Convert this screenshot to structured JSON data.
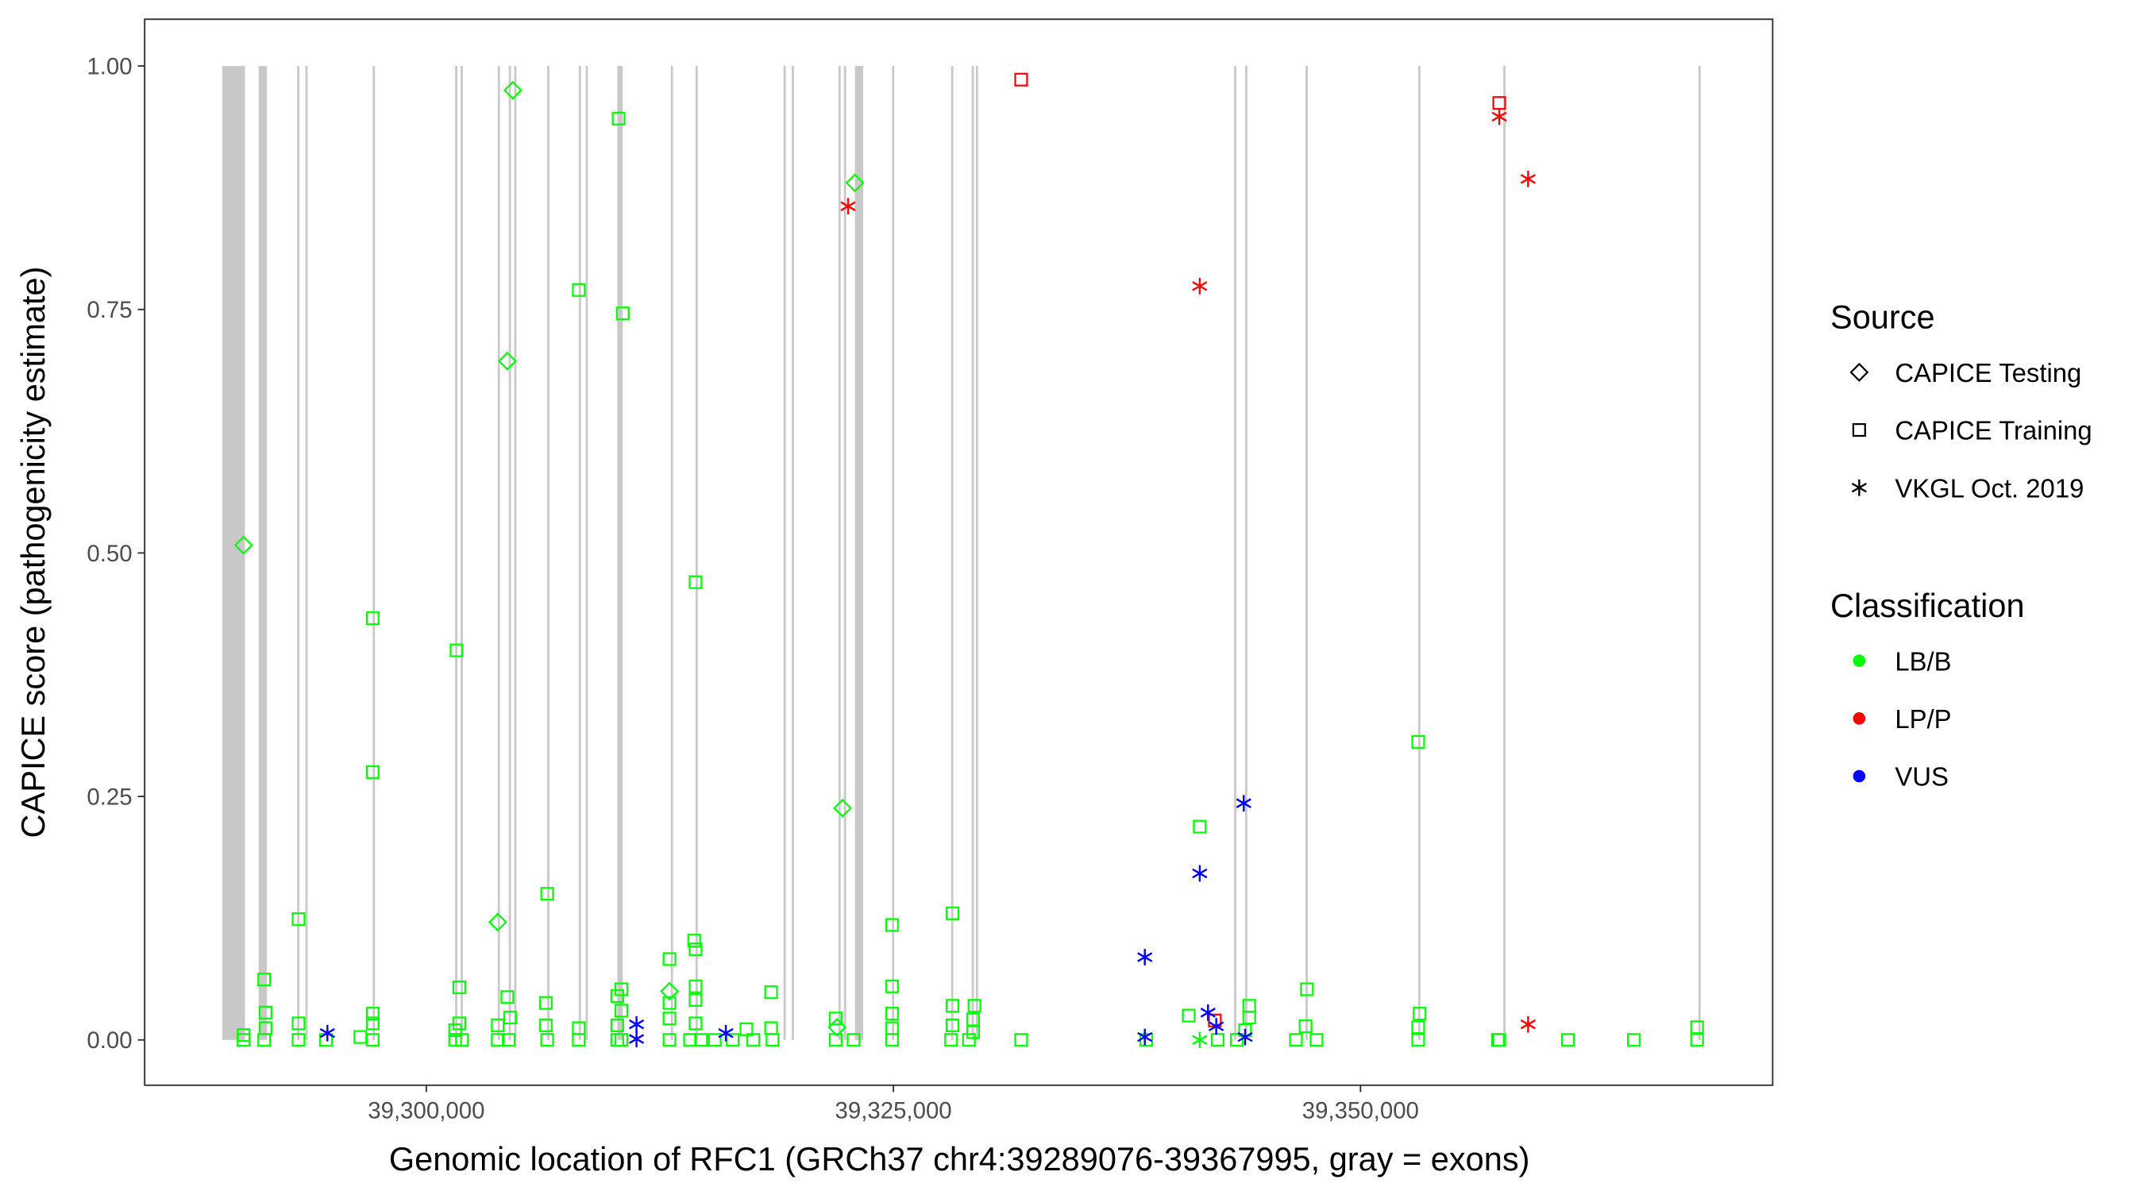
{
  "chart_data": {
    "type": "scatter",
    "title": "",
    "xlabel": "Genomic location of RFC1 (GRCh37 chr4:39289076-39367995, gray = exons)",
    "ylabel": "CAPICE score (pathogenicity estimate)",
    "xlim": [
      39284926,
      39372059
    ],
    "ylim": [
      -0.0465,
      1.048
    ],
    "x_ticks": [
      39300000,
      39325000,
      39350000
    ],
    "x_tick_labels": [
      "39,300,000",
      "39,325,000",
      "39,350,000"
    ],
    "y_ticks": [
      0,
      0.25,
      0.5,
      0.75,
      1.0
    ],
    "y_tick_labels": [
      "0.00",
      "0.25",
      "0.50",
      "0.75",
      "1.00"
    ],
    "grid": false,
    "exon_color": "#c8c8c8",
    "exons": [
      [
        39289076,
        39290294
      ],
      [
        39291029,
        39291470
      ],
      [
        39293088,
        39293200
      ],
      [
        39293529,
        39293640
      ],
      [
        39297132,
        39297240
      ],
      [
        39301544,
        39301650
      ],
      [
        39301838,
        39301950
      ],
      [
        39303824,
        39303930
      ],
      [
        39304412,
        39304520
      ],
      [
        39304706,
        39304810
      ],
      [
        39306471,
        39306580
      ],
      [
        39308162,
        39308270
      ],
      [
        39308529,
        39308640
      ],
      [
        39310221,
        39310515
      ],
      [
        39313088,
        39313200
      ],
      [
        39314412,
        39314520
      ],
      [
        39319118,
        39319230
      ],
      [
        39319559,
        39319670
      ],
      [
        39322059,
        39322170
      ],
      [
        39322353,
        39322460
      ],
      [
        39322941,
        39323382
      ],
      [
        39324927,
        39325040
      ],
      [
        39328088,
        39328200
      ],
      [
        39329191,
        39329300
      ],
      [
        39329412,
        39329520
      ],
      [
        39343235,
        39343340
      ],
      [
        39343824,
        39343930
      ],
      [
        39347059,
        39347170
      ],
      [
        39353088,
        39353200
      ],
      [
        39357647,
        39357750
      ],
      [
        39368088,
        39368190
      ]
    ],
    "legend": {
      "placement": "right",
      "source": {
        "title": "Source",
        "entries": [
          {
            "key": "testing",
            "label": "CAPICE Testing",
            "shape": "diamond"
          },
          {
            "key": "training",
            "label": "CAPICE Training",
            "shape": "square"
          },
          {
            "key": "vkgl",
            "label": "VKGL Oct. 2019",
            "shape": "asterisk"
          }
        ]
      },
      "classification": {
        "title": "Classification",
        "entries": [
          {
            "key": "LB/B",
            "label": "LB/B",
            "color": "#00ff00"
          },
          {
            "key": "LP/P",
            "label": "LP/P",
            "color": "#ff0000"
          },
          {
            "key": "VUS",
            "label": "VUS",
            "color": "#0000ff"
          }
        ]
      }
    },
    "points_columns": [
      "position",
      "score",
      "source",
      "classification"
    ],
    "points": [
      [
        39290220,
        0.508,
        "testing",
        "LB/B"
      ],
      [
        39304632,
        0.975,
        "testing",
        "LB/B"
      ],
      [
        39304338,
        0.697,
        "testing",
        "LB/B"
      ],
      [
        39303824,
        0.121,
        "testing",
        "LB/B"
      ],
      [
        39313015,
        0.05,
        "testing",
        "LB/B"
      ],
      [
        39322941,
        0.88,
        "testing",
        "LB/B"
      ],
      [
        39322279,
        0.238,
        "testing",
        "LB/B"
      ],
      [
        39321985,
        0.013,
        "testing",
        "LB/B"
      ],
      [
        39291323,
        0.062,
        "training",
        "LB/B"
      ],
      [
        39291397,
        0.028,
        "training",
        "LB/B"
      ],
      [
        39291397,
        0.012,
        "training",
        "LB/B"
      ],
      [
        39293162,
        0.124,
        "training",
        "LB/B"
      ],
      [
        39293162,
        0.017,
        "training",
        "LB/B"
      ],
      [
        39297132,
        0.433,
        "training",
        "LB/B"
      ],
      [
        39297132,
        0.275,
        "training",
        "LB/B"
      ],
      [
        39297132,
        0.027,
        "training",
        "LB/B"
      ],
      [
        39297132,
        0.017,
        "training",
        "LB/B"
      ],
      [
        39296471,
        0.003,
        "training",
        "LB/B"
      ],
      [
        39301618,
        0.4,
        "training",
        "LB/B"
      ],
      [
        39301765,
        0.054,
        "training",
        "LB/B"
      ],
      [
        39301765,
        0.017,
        "training",
        "LB/B"
      ],
      [
        39301544,
        0.01,
        "training",
        "LB/B"
      ],
      [
        39306471,
        0.15,
        "training",
        "LB/B"
      ],
      [
        39306397,
        0.038,
        "training",
        "LB/B"
      ],
      [
        39306397,
        0.015,
        "training",
        "LB/B"
      ],
      [
        39304338,
        0.044,
        "training",
        "LB/B"
      ],
      [
        39304485,
        0.023,
        "training",
        "LB/B"
      ],
      [
        39303824,
        0.015,
        "training",
        "LB/B"
      ],
      [
        39308162,
        0.77,
        "training",
        "LB/B"
      ],
      [
        39308162,
        0.012,
        "training",
        "LB/B"
      ],
      [
        39310294,
        0.946,
        "training",
        "LB/B"
      ],
      [
        39310515,
        0.746,
        "training",
        "LB/B"
      ],
      [
        39310221,
        0.045,
        "training",
        "LB/B"
      ],
      [
        39310441,
        0.052,
        "training",
        "LB/B"
      ],
      [
        39310441,
        0.03,
        "training",
        "LB/B"
      ],
      [
        39310221,
        0.015,
        "training",
        "LB/B"
      ],
      [
        39313015,
        0.083,
        "training",
        "LB/B"
      ],
      [
        39313015,
        0.038,
        "training",
        "LB/B"
      ],
      [
        39313015,
        0.022,
        "training",
        "LB/B"
      ],
      [
        39314412,
        0.47,
        "training",
        "LB/B"
      ],
      [
        39314338,
        0.102,
        "training",
        "LB/B"
      ],
      [
        39314412,
        0.093,
        "training",
        "LB/B"
      ],
      [
        39314412,
        0.055,
        "training",
        "LB/B"
      ],
      [
        39314412,
        0.041,
        "training",
        "LB/B"
      ],
      [
        39314412,
        0.017,
        "training",
        "LB/B"
      ],
      [
        39318456,
        0.049,
        "training",
        "LB/B"
      ],
      [
        39318456,
        0.012,
        "training",
        "LB/B"
      ],
      [
        39317132,
        0.011,
        "training",
        "LB/B"
      ],
      [
        39321912,
        0.022,
        "training",
        "LB/B"
      ],
      [
        39324927,
        0.118,
        "training",
        "LB/B"
      ],
      [
        39324927,
        0.055,
        "training",
        "LB/B"
      ],
      [
        39324927,
        0.027,
        "training",
        "LB/B"
      ],
      [
        39324927,
        0.012,
        "training",
        "LB/B"
      ],
      [
        39328162,
        0.13,
        "training",
        "LB/B"
      ],
      [
        39328162,
        0.035,
        "training",
        "LB/B"
      ],
      [
        39328162,
        0.015,
        "training",
        "LB/B"
      ],
      [
        39329338,
        0.035,
        "training",
        "LB/B"
      ],
      [
        39329265,
        0.021,
        "training",
        "LB/B"
      ],
      [
        39329265,
        0.008,
        "training",
        "LB/B"
      ],
      [
        39331838,
        0.0,
        "training",
        "LB/B"
      ],
      [
        39341397,
        0.219,
        "training",
        "LB/B"
      ],
      [
        39340809,
        0.025,
        "training",
        "LB/B"
      ],
      [
        39344044,
        0.035,
        "training",
        "LB/B"
      ],
      [
        39344044,
        0.023,
        "training",
        "LB/B"
      ],
      [
        39343824,
        0.01,
        "training",
        "LB/B"
      ],
      [
        39347132,
        0.052,
        "training",
        "LB/B"
      ],
      [
        39347059,
        0.014,
        "training",
        "LB/B"
      ],
      [
        39353088,
        0.306,
        "training",
        "LB/B"
      ],
      [
        39353162,
        0.027,
        "training",
        "LB/B"
      ],
      [
        39353088,
        0.013,
        "training",
        "LB/B"
      ],
      [
        39357427,
        0.0,
        "training",
        "LB/B"
      ],
      [
        39361103,
        0.0,
        "training",
        "LB/B"
      ],
      [
        39364633,
        0.0,
        "training",
        "LB/B"
      ],
      [
        39368015,
        0.013,
        "training",
        "LB/B"
      ],
      [
        39368015,
        0.0,
        "training",
        "LB/B"
      ],
      [
        39290220,
        0.0,
        "training",
        "LB/B"
      ],
      [
        39290220,
        0.005,
        "training",
        "LB/B"
      ],
      [
        39291323,
        0.0,
        "training",
        "LB/B"
      ],
      [
        39293162,
        0.0,
        "training",
        "LB/B"
      ],
      [
        39294632,
        0.0,
        "training",
        "LB/B"
      ],
      [
        39297132,
        0.0,
        "training",
        "LB/B"
      ],
      [
        39301544,
        0.0,
        "training",
        "LB/B"
      ],
      [
        39301912,
        0.0,
        "training",
        "LB/B"
      ],
      [
        39303824,
        0.0,
        "training",
        "LB/B"
      ],
      [
        39304412,
        0.0,
        "training",
        "LB/B"
      ],
      [
        39306471,
        0.0,
        "training",
        "LB/B"
      ],
      [
        39308162,
        0.0,
        "training",
        "LB/B"
      ],
      [
        39310221,
        0.0,
        "training",
        "LB/B"
      ],
      [
        39310441,
        0.0,
        "training",
        "LB/B"
      ],
      [
        39313015,
        0.0,
        "training",
        "LB/B"
      ],
      [
        39314118,
        0.0,
        "training",
        "LB/B"
      ],
      [
        39314706,
        0.0,
        "training",
        "LB/B"
      ],
      [
        39315441,
        0.0,
        "training",
        "LB/B"
      ],
      [
        39316397,
        0.0,
        "training",
        "LB/B"
      ],
      [
        39317500,
        0.0,
        "training",
        "LB/B"
      ],
      [
        39318530,
        0.0,
        "training",
        "LB/B"
      ],
      [
        39321912,
        0.0,
        "training",
        "LB/B"
      ],
      [
        39322868,
        0.0,
        "training",
        "LB/B"
      ],
      [
        39324927,
        0.0,
        "training",
        "LB/B"
      ],
      [
        39328088,
        0.0,
        "training",
        "LB/B"
      ],
      [
        39329044,
        0.0,
        "training",
        "LB/B"
      ],
      [
        39338530,
        0.0,
        "training",
        "LB/B"
      ],
      [
        39342353,
        0.0,
        "training",
        "LB/B"
      ],
      [
        39343382,
        0.0,
        "training",
        "LB/B"
      ],
      [
        39346544,
        0.0,
        "training",
        "LB/B"
      ],
      [
        39347647,
        0.0,
        "training",
        "LB/B"
      ],
      [
        39353088,
        0.0,
        "training",
        "LB/B"
      ],
      [
        39357353,
        0.0,
        "training",
        "LB/B"
      ],
      [
        39331838,
        0.986,
        "training",
        "LP/P"
      ],
      [
        39357427,
        0.962,
        "training",
        "LP/P"
      ],
      [
        39342206,
        0.02,
        "training",
        "LP/P"
      ],
      [
        39322574,
        0.856,
        "vkgl",
        "LP/P"
      ],
      [
        39341397,
        0.774,
        "vkgl",
        "LP/P"
      ],
      [
        39357427,
        0.948,
        "vkgl",
        "LP/P"
      ],
      [
        39358971,
        0.884,
        "vkgl",
        "LP/P"
      ],
      [
        39358971,
        0.016,
        "vkgl",
        "LP/P"
      ],
      [
        39294706,
        0.007,
        "vkgl",
        "VUS"
      ],
      [
        39311250,
        0.016,
        "vkgl",
        "VUS"
      ],
      [
        39311250,
        0.001,
        "vkgl",
        "VUS"
      ],
      [
        39316030,
        0.007,
        "vkgl",
        "VUS"
      ],
      [
        39338456,
        0.085,
        "vkgl",
        "VUS"
      ],
      [
        39338456,
        0.003,
        "vkgl",
        "VUS"
      ],
      [
        39341397,
        0.171,
        "vkgl",
        "VUS"
      ],
      [
        39343750,
        0.243,
        "vkgl",
        "VUS"
      ],
      [
        39341838,
        0.028,
        "vkgl",
        "VUS"
      ],
      [
        39342279,
        0.014,
        "vkgl",
        "VUS"
      ],
      [
        39343824,
        0.003,
        "vkgl",
        "VUS"
      ],
      [
        39341397,
        0.0,
        "vkgl",
        "LB/B"
      ]
    ]
  }
}
